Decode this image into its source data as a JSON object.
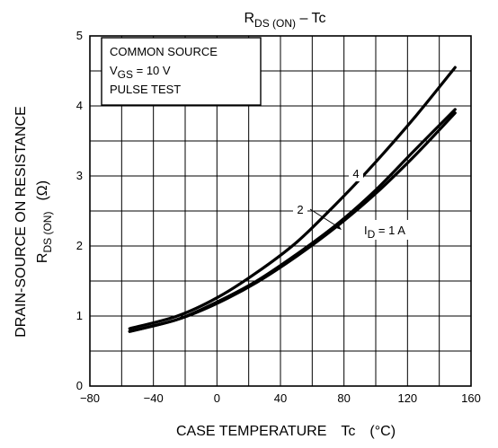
{
  "chart_data": {
    "type": "line",
    "title": {
      "main": "R",
      "sub": "DS (ON)",
      "rest": " – Tc"
    },
    "xlabel": {
      "main": "CASE TEMPERATURE",
      "symbol": "Tc",
      "unit": "(°C)"
    },
    "ylabel": {
      "line1": "DRAIN-SOURCE ON RESISTANCE",
      "main": "R",
      "sub": "DS (ON)",
      "unit": "(Ω)"
    },
    "xlim": [
      -80,
      160
    ],
    "ylim": [
      0,
      5
    ],
    "x_ticks": [
      "−80",
      "−40",
      "0",
      "40",
      "80",
      "120",
      "160"
    ],
    "x_tick_values": [
      -80,
      -40,
      0,
      40,
      80,
      120,
      160
    ],
    "y_ticks": [
      "0",
      "1",
      "2",
      "3",
      "4",
      "5"
    ],
    "y_tick_values": [
      0,
      1,
      2,
      3,
      4,
      5
    ],
    "grid": true,
    "conditions": {
      "line1": "COMMON SOURCE",
      "vgs_main": "V",
      "vgs_sub": "GS",
      "vgs_rest": " = 10 V",
      "line3": "PULSE TEST"
    },
    "series": [
      {
        "name": "4",
        "x": [
          -55,
          -25,
          0,
          25,
          50,
          75,
          100,
          125,
          150
        ],
        "y": [
          0.82,
          1.0,
          1.26,
          1.62,
          2.05,
          2.6,
          3.2,
          3.85,
          4.55
        ]
      },
      {
        "name": "2",
        "x": [
          -55,
          -25,
          0,
          25,
          50,
          75,
          100,
          125,
          150
        ],
        "y": [
          0.78,
          0.95,
          1.2,
          1.5,
          1.88,
          2.3,
          2.8,
          3.38,
          3.95
        ]
      },
      {
        "name": "1 A",
        "x": [
          -55,
          -25,
          0,
          25,
          50,
          75,
          100,
          125,
          150
        ],
        "y": [
          0.78,
          0.95,
          1.18,
          1.48,
          1.85,
          2.27,
          2.75,
          3.3,
          3.9
        ]
      }
    ],
    "annotations": {
      "label4": "4",
      "label2": "2",
      "id_main": "I",
      "id_sub": "D",
      "id_rest": " = 1 A"
    }
  }
}
